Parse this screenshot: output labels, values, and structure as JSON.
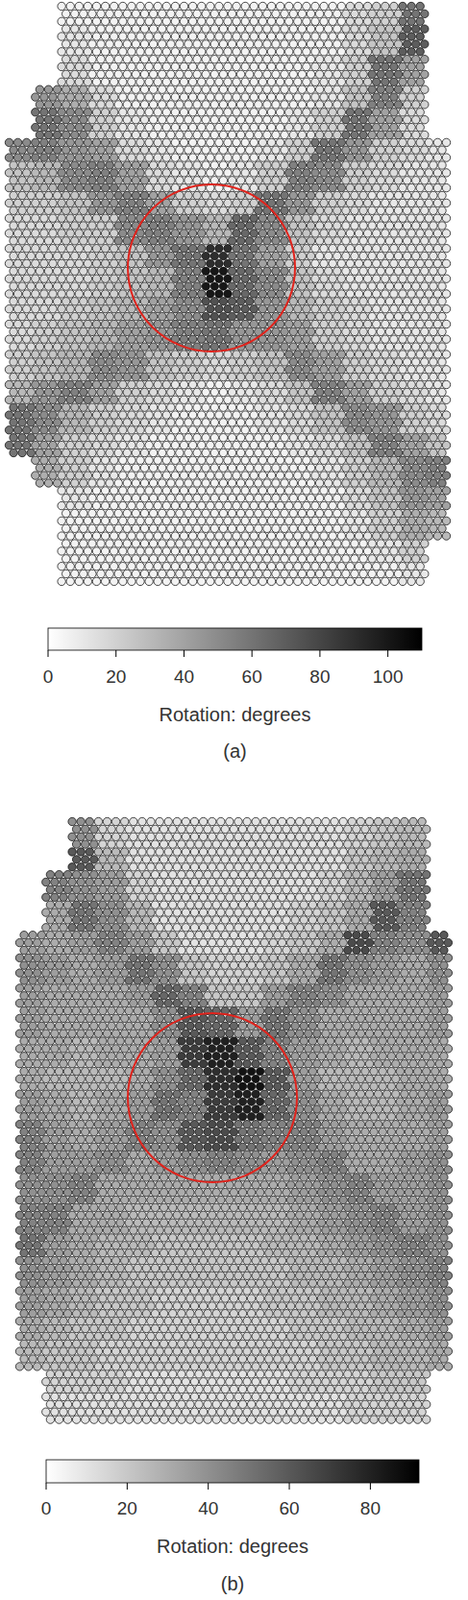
{
  "chart_data": [
    {
      "type": "heatmap",
      "label": "(a)",
      "colorbar_label": "Rotation: degrees",
      "color_range": [
        0,
        110
      ],
      "color_ticks": [
        0,
        20,
        40,
        60,
        80,
        100
      ],
      "cells": [
        [
          null,
          null,
          5,
          5,
          5,
          5,
          5,
          5,
          5,
          5,
          5,
          5,
          15,
          20,
          60,
          null
        ],
        [
          null,
          null,
          10,
          5,
          5,
          5,
          5,
          5,
          5,
          5,
          5,
          5,
          15,
          25,
          70,
          null
        ],
        [
          null,
          null,
          15,
          5,
          5,
          5,
          5,
          5,
          5,
          5,
          5,
          10,
          20,
          60,
          40,
          null
        ],
        [
          null,
          45,
          35,
          15,
          5,
          5,
          5,
          5,
          5,
          5,
          5,
          10,
          25,
          55,
          20,
          null
        ],
        [
          null,
          60,
          50,
          20,
          10,
          5,
          5,
          5,
          5,
          5,
          10,
          20,
          60,
          40,
          15,
          null
        ],
        [
          50,
          55,
          45,
          40,
          15,
          10,
          5,
          5,
          5,
          10,
          20,
          60,
          45,
          20,
          15,
          10
        ],
        [
          25,
          30,
          50,
          55,
          40,
          15,
          10,
          5,
          10,
          20,
          55,
          50,
          20,
          15,
          10,
          10
        ],
        [
          20,
          20,
          25,
          45,
          55,
          40,
          20,
          15,
          20,
          60,
          45,
          20,
          15,
          10,
          10,
          10
        ],
        [
          15,
          15,
          20,
          20,
          50,
          55,
          45,
          30,
          65,
          50,
          25,
          15,
          10,
          10,
          10,
          10
        ],
        [
          15,
          15,
          15,
          20,
          25,
          45,
          60,
          90,
          60,
          40,
          20,
          10,
          10,
          10,
          10,
          10
        ],
        [
          15,
          15,
          15,
          20,
          25,
          30,
          55,
          100,
          65,
          50,
          25,
          15,
          10,
          10,
          10,
          10
        ],
        [
          15,
          15,
          20,
          25,
          30,
          40,
          50,
          75,
          70,
          45,
          30,
          20,
          15,
          10,
          10,
          10
        ],
        [
          15,
          20,
          25,
          30,
          40,
          45,
          55,
          60,
          45,
          45,
          40,
          20,
          15,
          10,
          10,
          10
        ],
        [
          20,
          25,
          30,
          50,
          45,
          25,
          20,
          15,
          20,
          25,
          50,
          40,
          20,
          15,
          10,
          10
        ],
        [
          30,
          45,
          55,
          40,
          20,
          15,
          10,
          5,
          10,
          15,
          25,
          55,
          40,
          20,
          15,
          10
        ],
        [
          60,
          50,
          30,
          20,
          15,
          10,
          5,
          5,
          5,
          10,
          15,
          25,
          50,
          45,
          20,
          15
        ],
        [
          60,
          40,
          20,
          15,
          10,
          5,
          5,
          5,
          5,
          5,
          10,
          15,
          25,
          55,
          40,
          25
        ],
        [
          null,
          35,
          20,
          10,
          5,
          5,
          5,
          5,
          5,
          5,
          5,
          10,
          20,
          30,
          50,
          55
        ],
        [
          null,
          null,
          10,
          5,
          5,
          5,
          5,
          5,
          5,
          5,
          5,
          5,
          15,
          25,
          45,
          40
        ],
        [
          null,
          null,
          5,
          5,
          5,
          5,
          5,
          5,
          5,
          5,
          5,
          5,
          10,
          20,
          35,
          30
        ],
        [
          null,
          null,
          5,
          5,
          5,
          5,
          5,
          5,
          5,
          5,
          5,
          5,
          5,
          10,
          20,
          null
        ],
        [
          null,
          null,
          5,
          5,
          5,
          5,
          5,
          5,
          5,
          5,
          5,
          5,
          5,
          5,
          10,
          null
        ]
      ]
    },
    {
      "type": "heatmap",
      "label": "(b)",
      "colorbar_label": "Rotation: degrees",
      "color_range": [
        0,
        92
      ],
      "color_ticks": [
        0,
        20,
        40,
        60,
        80
      ],
      "cells": [
        [
          null,
          null,
          40,
          15,
          10,
          10,
          10,
          10,
          10,
          10,
          10,
          10,
          15,
          20,
          25,
          null
        ],
        [
          null,
          null,
          60,
          25,
          10,
          10,
          10,
          10,
          10,
          10,
          10,
          10,
          20,
          25,
          30,
          null
        ],
        [
          null,
          45,
          40,
          35,
          15,
          10,
          10,
          10,
          10,
          10,
          10,
          15,
          25,
          35,
          50,
          null
        ],
        [
          null,
          30,
          50,
          40,
          25,
          10,
          10,
          10,
          10,
          10,
          15,
          20,
          30,
          60,
          45,
          null
        ],
        [
          35,
          30,
          35,
          45,
          35,
          20,
          10,
          10,
          10,
          15,
          20,
          30,
          65,
          45,
          40,
          60
        ],
        [
          40,
          35,
          30,
          35,
          50,
          40,
          20,
          15,
          15,
          20,
          30,
          50,
          40,
          35,
          30,
          40
        ],
        [
          35,
          30,
          30,
          30,
          35,
          55,
          45,
          20,
          20,
          35,
          45,
          40,
          30,
          30,
          30,
          35
        ],
        [
          35,
          30,
          30,
          30,
          30,
          40,
          60,
          55,
          35,
          50,
          40,
          30,
          30,
          30,
          30,
          35
        ],
        [
          30,
          30,
          25,
          30,
          30,
          35,
          70,
          80,
          60,
          45,
          35,
          30,
          25,
          30,
          30,
          30
        ],
        [
          30,
          25,
          25,
          25,
          30,
          40,
          55,
          75,
          85,
          60,
          35,
          25,
          25,
          25,
          30,
          30
        ],
        [
          35,
          30,
          25,
          30,
          35,
          50,
          45,
          70,
          80,
          55,
          40,
          30,
          25,
          25,
          30,
          35
        ],
        [
          45,
          35,
          30,
          35,
          45,
          40,
          60,
          65,
          50,
          45,
          45,
          35,
          30,
          30,
          30,
          35
        ],
        [
          45,
          35,
          35,
          40,
          30,
          35,
          40,
          45,
          40,
          35,
          40,
          45,
          30,
          30,
          35,
          40
        ],
        [
          40,
          40,
          45,
          30,
          30,
          30,
          30,
          30,
          30,
          30,
          35,
          40,
          45,
          35,
          35,
          40
        ],
        [
          45,
          45,
          30,
          30,
          25,
          25,
          25,
          25,
          25,
          25,
          30,
          35,
          40,
          45,
          35,
          40
        ],
        [
          50,
          35,
          30,
          25,
          25,
          20,
          20,
          20,
          20,
          25,
          25,
          30,
          35,
          40,
          45,
          40
        ],
        [
          40,
          35,
          30,
          25,
          20,
          20,
          20,
          20,
          20,
          20,
          25,
          25,
          30,
          35,
          40,
          45
        ],
        [
          35,
          30,
          25,
          20,
          20,
          15,
          15,
          15,
          15,
          20,
          20,
          25,
          25,
          30,
          35,
          40
        ],
        [
          30,
          25,
          20,
          20,
          15,
          15,
          15,
          15,
          15,
          15,
          20,
          20,
          25,
          25,
          30,
          35
        ],
        [
          25,
          20,
          20,
          15,
          15,
          15,
          15,
          15,
          15,
          15,
          15,
          20,
          20,
          25,
          25,
          30
        ],
        [
          null,
          15,
          15,
          15,
          10,
          10,
          10,
          10,
          10,
          10,
          15,
          15,
          15,
          20,
          20,
          null
        ],
        [
          null,
          10,
          10,
          10,
          10,
          10,
          10,
          10,
          10,
          10,
          10,
          10,
          15,
          15,
          15,
          null
        ]
      ]
    }
  ]
}
